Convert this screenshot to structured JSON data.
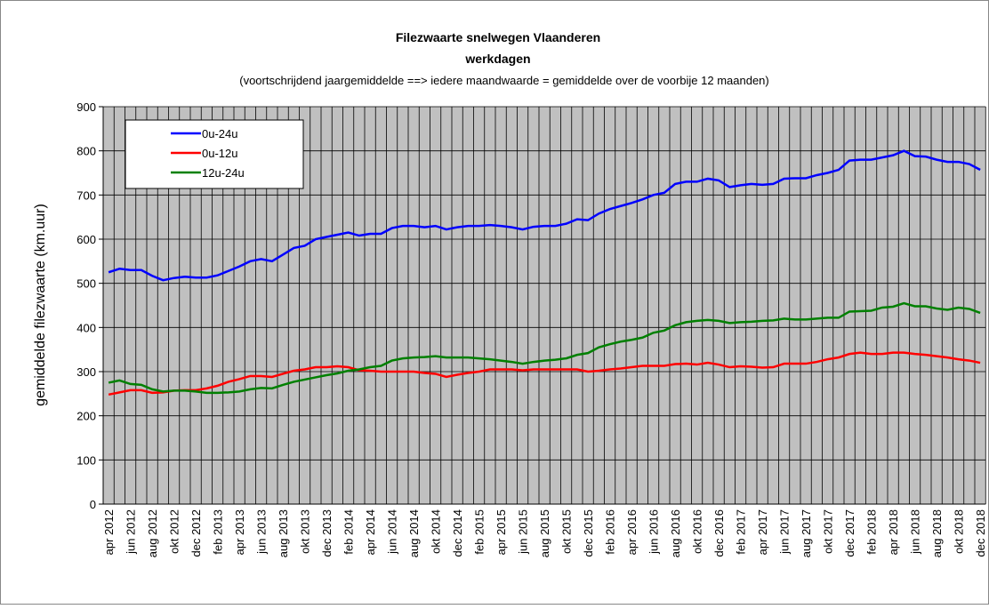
{
  "chart_data": {
    "type": "line",
    "title": "Filezwaarte snelwegen Vlaanderen",
    "subtitle": "werkdagen",
    "note": "(voortschrijdend jaargemiddelde ==> iedere maandwaarde = gemiddelde over de voorbije 12 maanden)",
    "y_label": "gemiddelde filezwaarte  (km.uur)",
    "categories": [
      "apr 2012",
      null,
      "jun 2012",
      null,
      "aug 2012",
      null,
      "okt 2012",
      null,
      "dec 2012",
      null,
      "feb 2013",
      null,
      "apr 2013",
      null,
      "jun 2013",
      null,
      "aug 2013",
      null,
      "okt 2013",
      null,
      "dec 2013",
      null,
      "feb 2014",
      null,
      "apr 2014",
      null,
      "jun 2014",
      null,
      "aug 2014",
      null,
      "okt 2014",
      null,
      "dec 2014",
      null,
      "feb 2015",
      null,
      "apr 2015",
      null,
      "jun 2015",
      null,
      "aug 2015",
      null,
      "okt 2015",
      null,
      "dec 2015",
      null,
      "feb 2016",
      null,
      "apr 2016",
      null,
      "jun 2016",
      null,
      "aug 2016",
      null,
      "okt 2016",
      null,
      "dec 2016",
      null,
      "feb 2017",
      null,
      "apr 2017",
      null,
      "jun 2017",
      null,
      "aug 2017",
      null,
      "okt 2017",
      null,
      "dec 2017",
      null,
      "feb 2018",
      null,
      "apr 2018",
      null,
      "jun 2018",
      null,
      "aug 2018",
      null,
      "okt 2018",
      null,
      "dec 2018"
    ],
    "series": [
      {
        "name": "0u-24u",
        "color": "#0000ff",
        "values": [
          525,
          533,
          530,
          530,
          517,
          507,
          512,
          515,
          513,
          513,
          518,
          528,
          538,
          550,
          555,
          550,
          565,
          580,
          585,
          600,
          605,
          610,
          615,
          608,
          612,
          612,
          625,
          630,
          630,
          627,
          630,
          622,
          627,
          630,
          630,
          632,
          630,
          627,
          622,
          628,
          630,
          630,
          635,
          645,
          643,
          658,
          668,
          675,
          682,
          690,
          700,
          705,
          725,
          730,
          730,
          737,
          733,
          718,
          722,
          725,
          723,
          725,
          737,
          738,
          738,
          745,
          750,
          757,
          778,
          780,
          780,
          785,
          790,
          800,
          788,
          787,
          780,
          775,
          775,
          770,
          757
        ]
      },
      {
        "name": "0u-12u",
        "color": "#ff0000",
        "values": [
          248,
          253,
          258,
          258,
          252,
          253,
          257,
          258,
          258,
          262,
          268,
          277,
          283,
          290,
          290,
          288,
          295,
          302,
          305,
          310,
          310,
          312,
          310,
          303,
          302,
          300,
          300,
          300,
          300,
          297,
          295,
          288,
          293,
          297,
          300,
          305,
          305,
          305,
          303,
          305,
          305,
          305,
          305,
          305,
          300,
          302,
          305,
          307,
          310,
          313,
          313,
          313,
          317,
          318,
          316,
          320,
          316,
          310,
          312,
          311,
          309,
          310,
          318,
          318,
          318,
          322,
          328,
          332,
          340,
          343,
          340,
          340,
          343,
          343,
          340,
          338,
          335,
          332,
          328,
          325,
          320
        ]
      },
      {
        "name": "12u-24u",
        "color": "#008000",
        "values": [
          275,
          280,
          272,
          270,
          260,
          255,
          257,
          257,
          255,
          252,
          252,
          253,
          255,
          260,
          263,
          262,
          270,
          277,
          282,
          287,
          292,
          296,
          302,
          305,
          310,
          313,
          325,
          330,
          332,
          333,
          335,
          332,
          332,
          332,
          330,
          328,
          325,
          322,
          318,
          322,
          325,
          327,
          330,
          338,
          342,
          355,
          362,
          368,
          372,
          377,
          388,
          393,
          405,
          412,
          415,
          417,
          415,
          410,
          412,
          413,
          415,
          416,
          420,
          418,
          418,
          420,
          422,
          422,
          436,
          437,
          438,
          445,
          447,
          455,
          448,
          448,
          443,
          440,
          445,
          442,
          433
        ]
      }
    ],
    "ylim": [
      0,
      900
    ],
    "yticks": [
      0,
      100,
      200,
      300,
      400,
      500,
      600,
      700,
      800,
      900
    ],
    "grid": true,
    "legend": "upper left",
    "plot_background": "#c0c0c0"
  }
}
